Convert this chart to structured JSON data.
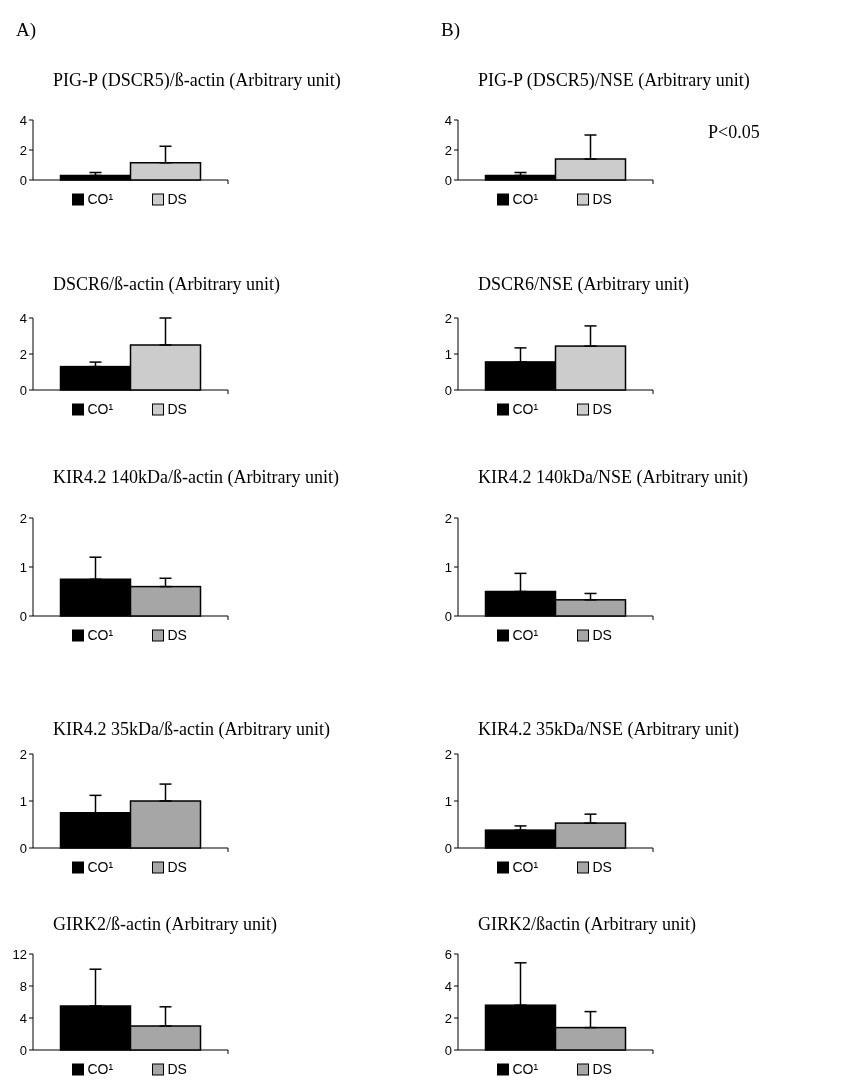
{
  "chart_data": [
    {
      "type": "bar",
      "title": "PIG-P (DSCR5)/ß-actin (Arbitrary unit)",
      "annotations": [
        "A)"
      ],
      "categories": [
        null
      ],
      "ylim": [
        0,
        4
      ],
      "yticks": [
        0,
        2,
        4
      ],
      "legend": "bottom",
      "series": [
        {
          "name": "CO¹",
          "color": "#000000",
          "values": [
            0.3
          ],
          "errors": [
            [
              0.3,
              0.5
            ]
          ]
        },
        {
          "name": "DS",
          "color": "#cccccc",
          "values": [
            1.15
          ],
          "errors": [
            [
              1.15,
              2.25
            ]
          ]
        }
      ]
    },
    {
      "type": "bar",
      "title": "PIG-P (DSCR5)/NSE (Arbitrary unit)",
      "annotations": [
        "B)",
        "P<0.05"
      ],
      "categories": [
        null
      ],
      "ylim": [
        0,
        4
      ],
      "yticks": [
        0,
        2,
        4
      ],
      "legend": "bottom",
      "series": [
        {
          "name": "CO¹",
          "color": "#000000",
          "values": [
            0.3
          ],
          "errors": [
            [
              0.3,
              0.5
            ]
          ]
        },
        {
          "name": "DS",
          "color": "#cccccc",
          "values": [
            1.4
          ],
          "errors": [
            [
              1.4,
              3.0
            ]
          ]
        }
      ]
    },
    {
      "type": "bar",
      "title": "DSCR6/ß-actin (Arbitrary unit)",
      "categories": [
        null
      ],
      "ylim": [
        0,
        4
      ],
      "yticks": [
        0,
        2,
        4
      ],
      "legend": "bottom",
      "series": [
        {
          "name": "CO¹",
          "color": "#000000",
          "values": [
            1.3
          ],
          "errors": [
            [
              1.3,
              1.55
            ]
          ]
        },
        {
          "name": "DS",
          "color": "#cccccc",
          "values": [
            2.5
          ],
          "errors": [
            [
              2.5,
              4.0
            ]
          ]
        }
      ]
    },
    {
      "type": "bar",
      "title": "DSCR6/NSE (Arbitrary unit)",
      "categories": [
        null
      ],
      "ylim": [
        0,
        2
      ],
      "yticks": [
        0,
        1,
        2
      ],
      "legend": "bottom",
      "series": [
        {
          "name": "CO¹",
          "color": "#000000",
          "values": [
            0.78
          ],
          "errors": [
            [
              0.78,
              1.17
            ]
          ]
        },
        {
          "name": "DS",
          "color": "#cccccc",
          "values": [
            1.22
          ],
          "errors": [
            [
              1.22,
              1.78
            ]
          ]
        }
      ]
    },
    {
      "type": "bar",
      "title": "KIR4.2 140kDa/ß-actin (Arbitrary unit)",
      "categories": [
        null
      ],
      "ylim": [
        0,
        2
      ],
      "yticks": [
        0,
        1,
        2
      ],
      "legend": "bottom",
      "series": [
        {
          "name": "CO¹",
          "color": "#000000",
          "values": [
            0.75
          ],
          "errors": [
            [
              0.75,
              1.2
            ]
          ]
        },
        {
          "name": "DS",
          "color": "#a6a6a6",
          "values": [
            0.6
          ],
          "errors": [
            [
              0.6,
              0.77
            ]
          ]
        }
      ]
    },
    {
      "type": "bar",
      "title": "KIR4.2 140kDa/NSE (Arbitrary unit)",
      "categories": [
        null
      ],
      "ylim": [
        0,
        2
      ],
      "yticks": [
        0,
        1,
        2
      ],
      "legend": "bottom",
      "series": [
        {
          "name": "CO¹",
          "color": "#000000",
          "values": [
            0.5
          ],
          "errors": [
            [
              0.5,
              0.87
            ]
          ]
        },
        {
          "name": "DS",
          "color": "#a6a6a6",
          "values": [
            0.33
          ],
          "errors": [
            [
              0.33,
              0.46
            ]
          ]
        }
      ]
    },
    {
      "type": "bar",
      "title": "KIR4.2 35kDa/ß-actin (Arbitrary unit)",
      "categories": [
        null
      ],
      "ylim": [
        0,
        2
      ],
      "yticks": [
        0,
        1,
        2
      ],
      "legend": "bottom",
      "series": [
        {
          "name": "CO¹",
          "color": "#000000",
          "values": [
            0.75
          ],
          "errors": [
            [
              0.75,
              1.12
            ]
          ]
        },
        {
          "name": "DS",
          "color": "#a6a6a6",
          "values": [
            1.0
          ],
          "errors": [
            [
              1.0,
              1.36
            ]
          ]
        }
      ]
    },
    {
      "type": "bar",
      "title": "KIR4.2 35kDa/NSE (Arbitrary unit)",
      "categories": [
        null
      ],
      "ylim": [
        0,
        2
      ],
      "yticks": [
        0,
        1,
        2
      ],
      "legend": "bottom",
      "series": [
        {
          "name": "CO¹",
          "color": "#000000",
          "values": [
            0.38
          ],
          "errors": [
            [
              0.38,
              0.47
            ]
          ]
        },
        {
          "name": "DS",
          "color": "#a6a6a6",
          "values": [
            0.53
          ],
          "errors": [
            [
              0.53,
              0.72
            ]
          ]
        }
      ]
    },
    {
      "type": "bar",
      "title": "GIRK2/ß-actin (Arbitrary unit)",
      "categories": [
        null
      ],
      "ylim": [
        0,
        12
      ],
      "yticks": [
        0,
        4,
        8,
        12
      ],
      "legend": "bottom",
      "series": [
        {
          "name": "CO¹",
          "color": "#000000",
          "values": [
            5.5
          ],
          "errors": [
            [
              5.5,
              10.1
            ]
          ]
        },
        {
          "name": "DS",
          "color": "#a6a6a6",
          "values": [
            3.0
          ],
          "errors": [
            [
              3.0,
              5.4
            ]
          ]
        }
      ]
    },
    {
      "type": "bar",
      "title": "GIRK2/ßactin (Arbitrary unit)",
      "categories": [
        null
      ],
      "ylim": [
        0,
        6
      ],
      "yticks": [
        0,
        2,
        4,
        6
      ],
      "legend": "bottom",
      "series": [
        {
          "name": "CO¹",
          "color": "#000000",
          "values": [
            2.8
          ],
          "errors": [
            [
              2.8,
              5.45
            ]
          ]
        },
        {
          "name": "DS",
          "color": "#a6a6a6",
          "values": [
            1.4
          ],
          "errors": [
            [
              1.4,
              2.4
            ]
          ]
        }
      ]
    }
  ]
}
